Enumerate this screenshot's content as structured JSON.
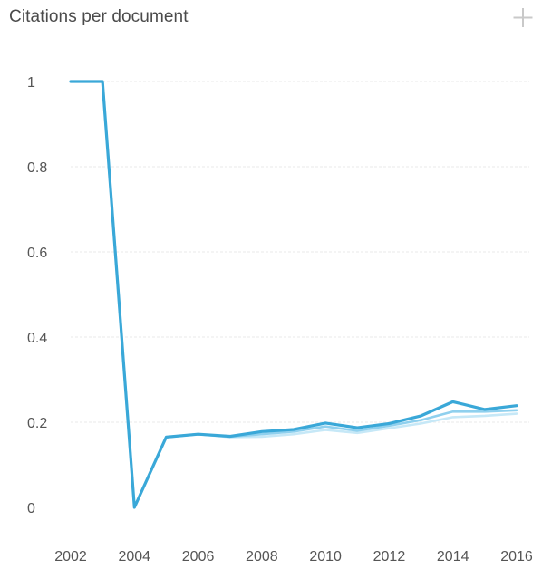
{
  "chart_data": {
    "type": "line",
    "title": "Citations per document",
    "xlabel": "",
    "ylabel": "",
    "x": [
      2002,
      2003,
      2004,
      2005,
      2006,
      2007,
      2008,
      2009,
      2010,
      2011,
      2012,
      2013,
      2014,
      2015,
      2016
    ],
    "xticks": [
      "2002",
      "2004",
      "2006",
      "2008",
      "2010",
      "2012",
      "2014",
      "2016"
    ],
    "yticks": [
      "0",
      "0.2",
      "0.4",
      "0.6",
      "0.8",
      "1"
    ],
    "ylim": [
      0,
      1
    ],
    "xlim": [
      2002,
      2016
    ],
    "grid": true,
    "legend": "none",
    "series": [
      {
        "color": "#3aa8d8",
        "values": [
          1.0,
          1.0,
          0.0,
          0.165,
          0.172,
          0.167,
          0.178,
          0.183,
          0.198,
          0.187,
          0.197,
          0.215,
          0.248,
          0.23,
          0.239
        ]
      },
      {
        "color": "#8fd0ee",
        "values": [
          1.0,
          1.0,
          0.0,
          0.165,
          0.172,
          0.166,
          0.172,
          0.178,
          0.19,
          0.18,
          0.192,
          0.205,
          0.225,
          0.225,
          0.228
        ]
      },
      {
        "color": "#c6e8f7",
        "values": [
          1.0,
          1.0,
          0.0,
          0.165,
          0.172,
          0.165,
          0.166,
          0.172,
          0.182,
          0.175,
          0.186,
          0.197,
          0.212,
          0.215,
          0.22
        ]
      }
    ]
  }
}
